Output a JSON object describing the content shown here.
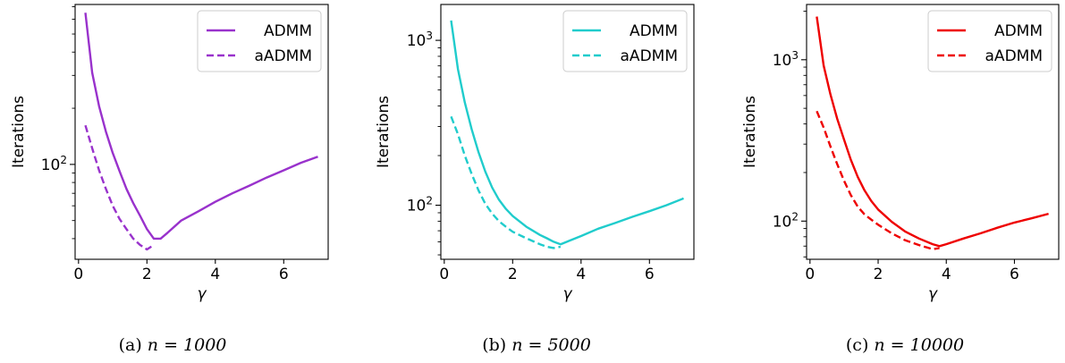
{
  "chart_data": [
    {
      "type": "line",
      "caption": "(a) n = 1000",
      "caption_prefix": "(a)",
      "caption_math": "n = 1000",
      "xlabel": "γ",
      "ylabel": "Iterations",
      "xlim": [
        -0.1,
        7.3
      ],
      "ylim": [
        31,
        720
      ],
      "yscale": "log",
      "xticks": [
        0,
        2,
        4,
        6
      ],
      "xtick_labels": [
        "0",
        "2",
        "4",
        "6"
      ],
      "yticks": [
        100
      ],
      "ytick_labels": [
        "10²"
      ],
      "legend_position": "top-right",
      "color": "#9932CC",
      "series": [
        {
          "name": "ADMM",
          "style": "solid",
          "x": [
            0.2,
            0.4,
            0.6,
            0.8,
            1.0,
            1.2,
            1.4,
            1.6,
            1.8,
            2.0,
            2.2,
            2.4,
            2.6,
            3.0,
            3.5,
            4.0,
            4.5,
            5.0,
            5.5,
            6.0,
            6.5,
            7.0
          ],
          "y": [
            650,
            310,
            205,
            150,
            115,
            92,
            74,
            62,
            53,
            45,
            40,
            40,
            43,
            50,
            56,
            63,
            70,
            77,
            85,
            93,
            102,
            110
          ]
        },
        {
          "name": "aADMM",
          "style": "dashed",
          "x": [
            0.2,
            0.4,
            0.6,
            0.8,
            1.0,
            1.2,
            1.4,
            1.6,
            1.8,
            2.0,
            2.2
          ],
          "y": [
            162,
            122,
            93,
            74,
            60,
            51,
            45,
            40,
            37,
            35,
            37
          ]
        }
      ]
    },
    {
      "type": "line",
      "caption": "(b) n = 5000",
      "caption_prefix": "(b)",
      "caption_math": "n = 5000",
      "xlabel": "γ",
      "ylabel": "Iterations",
      "xlim": [
        -0.1,
        7.3
      ],
      "ylim": [
        47,
        1650
      ],
      "yscale": "log",
      "xticks": [
        0,
        2,
        4,
        6
      ],
      "xtick_labels": [
        "0",
        "2",
        "4",
        "6"
      ],
      "yticks": [
        100,
        1000
      ],
      "ytick_labels": [
        "10²",
        "10³"
      ],
      "legend_position": "top-right",
      "color": "#20CCCC",
      "series": [
        {
          "name": "ADMM",
          "style": "solid",
          "x": [
            0.2,
            0.4,
            0.6,
            0.8,
            1.0,
            1.2,
            1.4,
            1.6,
            1.8,
            2.0,
            2.4,
            2.8,
            3.0,
            3.2,
            3.4,
            4.0,
            4.5,
            5.0,
            5.5,
            6.0,
            6.5,
            7.0
          ],
          "y": [
            1320,
            670,
            420,
            290,
            210,
            160,
            128,
            108,
            95,
            86,
            74,
            66,
            63,
            60,
            58,
            65,
            72,
            78,
            85,
            92,
            100,
            110
          ]
        },
        {
          "name": "aADMM",
          "style": "dashed",
          "x": [
            0.2,
            0.4,
            0.6,
            0.8,
            1.0,
            1.2,
            1.4,
            1.6,
            1.8,
            2.0,
            2.4,
            2.8,
            3.0,
            3.2,
            3.4
          ],
          "y": [
            345,
            270,
            200,
            155,
            123,
            102,
            89,
            80,
            74,
            69,
            63,
            58,
            56,
            55,
            56
          ]
        }
      ]
    },
    {
      "type": "line",
      "caption": "(c) n = 10000",
      "caption_prefix": "(c)",
      "caption_math": "n = 10000",
      "xlabel": "γ",
      "ylabel": "Iterations",
      "xlim": [
        -0.1,
        7.3
      ],
      "ylim": [
        58,
        2200
      ],
      "yscale": "log",
      "xticks": [
        0,
        2,
        4,
        6
      ],
      "xtick_labels": [
        "0",
        "2",
        "4",
        "6"
      ],
      "yticks": [
        100,
        1000
      ],
      "ytick_labels": [
        "10²",
        "10³"
      ],
      "legend_position": "top-right",
      "color": "#EE0000",
      "series": [
        {
          "name": "ADMM",
          "style": "solid",
          "x": [
            0.2,
            0.4,
            0.6,
            0.8,
            1.0,
            1.2,
            1.4,
            1.6,
            1.8,
            2.0,
            2.4,
            2.8,
            3.2,
            3.6,
            3.8,
            4.0,
            4.5,
            5.0,
            5.5,
            6.0,
            6.5,
            7.0
          ],
          "y": [
            1850,
            920,
            610,
            430,
            320,
            240,
            188,
            155,
            133,
            118,
            99,
            86,
            78,
            72,
            70,
            72,
            78,
            84,
            91,
            98,
            104,
            111
          ]
        },
        {
          "name": "aADMM",
          "style": "dashed",
          "x": [
            0.2,
            0.4,
            0.6,
            0.8,
            1.0,
            1.2,
            1.4,
            1.6,
            1.8,
            2.0,
            2.4,
            2.8,
            3.2,
            3.6,
            3.8
          ],
          "y": [
            480,
            380,
            290,
            225,
            178,
            145,
            123,
            110,
            102,
            95,
            84,
            76,
            71,
            67,
            68
          ]
        }
      ]
    }
  ]
}
